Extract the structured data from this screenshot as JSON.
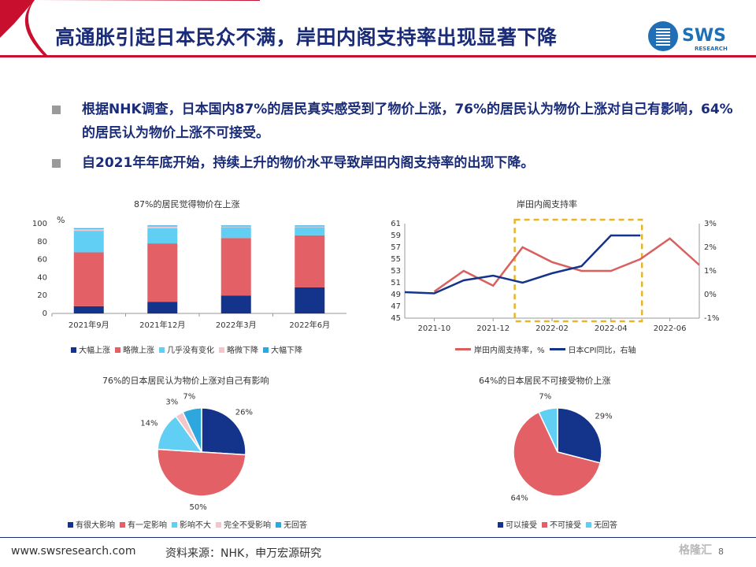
{
  "header": {
    "title": "高通胀引起日本民众不满，岸田内阁支持率出现显著下降",
    "logo_text": "SWS",
    "logo_sub": "RESEARCH",
    "accent": "#c8102e",
    "navy": "#1a2b78"
  },
  "bullets": [
    {
      "text": "根据NHK调查，日本国内87%的居民真实感受到了物价上涨，76%的居民认为物价上涨对自己有影响，64%的居民认为物价上涨不可接受。"
    },
    {
      "text": "自2021年年底开始，持续上升的物价水平导致岸田内阁支持率的出现下降。"
    }
  ],
  "footer": {
    "url": "www.swsresearch.com",
    "source": "资料来源：NHK，申万宏源研究",
    "page": "8",
    "watermark": "格隆汇"
  },
  "chart_data": [
    {
      "type": "bar",
      "stacked": true,
      "title": "87%的居民觉得物价在上涨",
      "unit": "%",
      "categories": [
        "2021年9月",
        "2021年12月",
        "2022年3月",
        "2022年6月"
      ],
      "ylim": [
        0,
        100
      ],
      "yticks": [
        0,
        20,
        40,
        60,
        80,
        100
      ],
      "series": [
        {
          "name": "大幅上涨",
          "color": "#14338a",
          "values": [
            8,
            13,
            20,
            29
          ]
        },
        {
          "name": "略微上涨",
          "color": "#e36166",
          "values": [
            60,
            65,
            64,
            58
          ]
        },
        {
          "name": "几乎没有变化",
          "color": "#60cff3",
          "values": [
            24,
            17,
            12,
            9
          ]
        },
        {
          "name": "略微下降",
          "color": "#f2c6ca",
          "values": [
            2,
            2,
            1,
            1
          ]
        },
        {
          "name": "大幅下降",
          "color": "#2ea7df",
          "values": [
            1,
            1,
            1,
            1
          ]
        }
      ],
      "legend_position": "bottom"
    },
    {
      "type": "line",
      "title": "岸田内阁支持率",
      "x_ticks": [
        "2021-10",
        "2021-12",
        "2022-02",
        "2022-04",
        "2022-06"
      ],
      "ylim": [
        45,
        61
      ],
      "yticks": [
        45,
        47,
        49,
        51,
        53,
        55,
        57,
        59,
        61
      ],
      "y2lim": [
        -1,
        3
      ],
      "y2ticks": [
        "-1%",
        "0%",
        "1%",
        "2%",
        "3%"
      ],
      "series": [
        {
          "name": "岸田内阁支持率，%",
          "color": "#d9605f",
          "axis": "left",
          "x": [
            "2021-10",
            "2021-11",
            "2021-12",
            "2022-01",
            "2022-02",
            "2022-03",
            "2022-04",
            "2022-05",
            "2022-06",
            "2022-07"
          ],
          "y": [
            49.5,
            53,
            50.5,
            57,
            54.5,
            53,
            53,
            55,
            58.5,
            54
          ]
        },
        {
          "name": "日本CPI同比，右轴",
          "color": "#14338a",
          "axis": "right",
          "x": [
            "2021-09",
            "2021-10",
            "2021-11",
            "2021-12",
            "2022-01",
            "2022-02",
            "2022-03",
            "2022-04",
            "2022-05"
          ],
          "y": [
            0.1,
            0.05,
            0.6,
            0.8,
            0.5,
            0.9,
            1.2,
            2.5,
            2.5
          ]
        }
      ],
      "highlight": {
        "from": "2022-01",
        "to": "2022-05",
        "color": "#e8b523"
      },
      "legend_position": "bottom"
    },
    {
      "type": "pie",
      "title": "76%的日本居民认为物价上涨对自己有影响",
      "slices": [
        {
          "name": "有很大影响",
          "value": 26,
          "label": "26%",
          "color": "#14338a"
        },
        {
          "name": "有一定影响",
          "value": 50,
          "label": "50%",
          "color": "#e36166"
        },
        {
          "name": "影响不大",
          "value": 14,
          "label": "14%",
          "color": "#60cff3"
        },
        {
          "name": "完全不受影响",
          "value": 3,
          "label": "3%",
          "color": "#f2c6ca"
        },
        {
          "name": "无回答",
          "value": 7,
          "label": "7%",
          "color": "#2ea7df"
        }
      ],
      "legend_position": "bottom"
    },
    {
      "type": "pie",
      "title": "64%的日本居民不可接受物价上涨",
      "slices": [
        {
          "name": "可以接受",
          "value": 29,
          "label": "29%",
          "color": "#14338a"
        },
        {
          "name": "不可接受",
          "value": 64,
          "label": "64%",
          "color": "#e36166"
        },
        {
          "name": "无回答",
          "value": 7,
          "label": "7%",
          "color": "#60cff3"
        }
      ],
      "legend_position": "bottom"
    }
  ]
}
